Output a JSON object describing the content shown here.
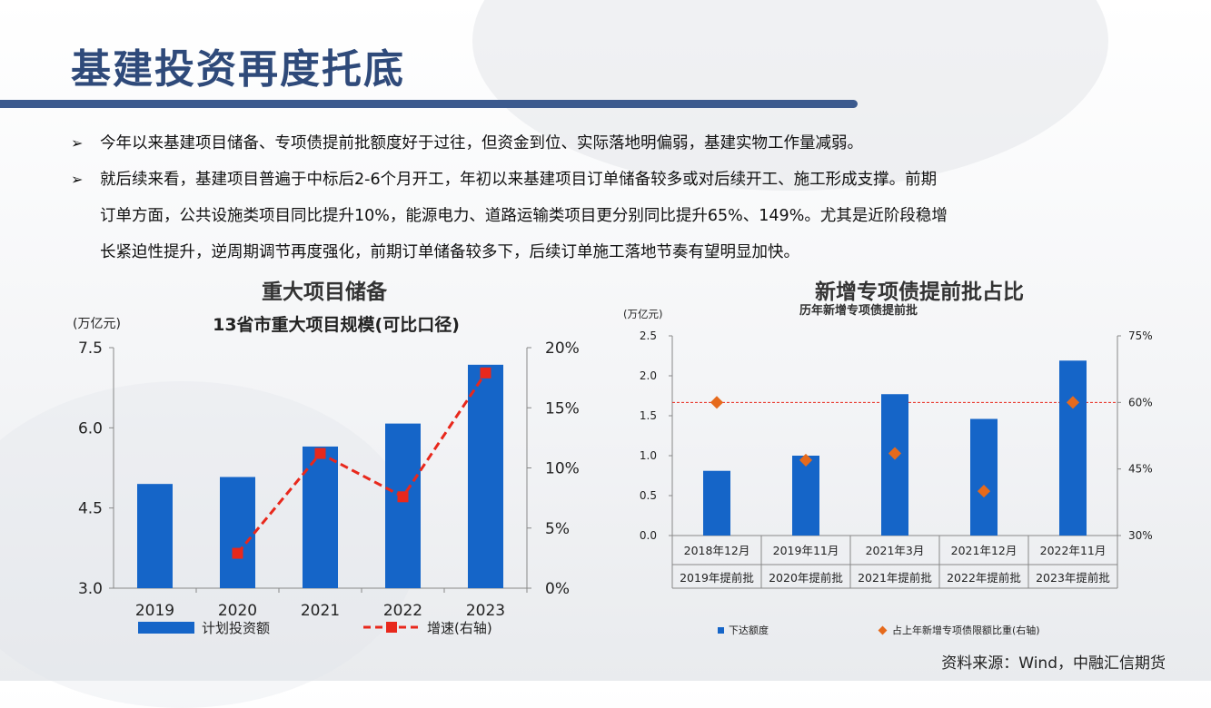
{
  "slide": {
    "title": "基建投资再度托底",
    "bullets": [
      {
        "lines": [
          "今年以来基建项目储备、专项债提前批额度好于过往，但资金到位、实际落地明偏弱，基建实物工作量减弱。"
        ]
      },
      {
        "lines": [
          "就后续来看，基建项目普遍于中标后2-6个月开工，年初以来基建项目订单储备较多或对后续开工、施工形成支撑。前期",
          "订单方面，公共设施类项目同比提升10%，能源电力、道路运输类项目更分别同比提升65%、149%。尤其是近阶段稳增",
          "长紧迫性提升，逆周期调节再度强化，前期订单储备较多下，后续订单施工落地节奏有望明显加快。"
        ]
      }
    ],
    "bullet_mark": "➢",
    "source": "资料来源：Wind，中融汇信期货"
  },
  "chart_data": [
    {
      "type": "bar",
      "panel_title": "重大项目储备",
      "title": "13省市重大项目规模(可比口径)",
      "unit_label": "(万亿元)",
      "categories": [
        "2019",
        "2020",
        "2021",
        "2022",
        "2023"
      ],
      "series": [
        {
          "name": "计划投资额",
          "type": "bar",
          "axis": "left",
          "values": [
            4.95,
            5.08,
            5.65,
            6.08,
            7.18
          ],
          "color": "#1565c8"
        },
        {
          "name": "增速(右轴)",
          "type": "line",
          "axis": "right",
          "values": [
            null,
            2.9,
            11.2,
            7.6,
            17.9
          ],
          "color": "#e8281c",
          "dashed": true
        }
      ],
      "ylim": [
        3.0,
        7.5
      ],
      "yticks": [
        "3.0",
        "4.5",
        "6.0",
        "7.5"
      ],
      "y2lim": [
        0,
        20
      ],
      "y2ticks": [
        "0%",
        "5%",
        "10%",
        "15%",
        "20%"
      ],
      "legend": "bottom"
    },
    {
      "type": "bar",
      "panel_title": "新增专项债提前批占比",
      "title": "历年新增专项债提前批",
      "unit_label": "(万亿元)",
      "categories": [
        "2018年12月",
        "2019年11月",
        "2021年3月",
        "2021年12月",
        "2022年11月"
      ],
      "category_sublabels": [
        "2019年提前批",
        "2020年提前批",
        "2021年提前批",
        "2022年提前批",
        "2023年提前批"
      ],
      "series": [
        {
          "name": "下达额度",
          "type": "bar",
          "axis": "left",
          "values": [
            0.81,
            1.0,
            1.77,
            1.46,
            2.19
          ],
          "color": "#1565c8"
        },
        {
          "name": "占上年新增专项债限额比重(右轴)",
          "type": "scatter",
          "axis": "right",
          "values": [
            60.0,
            47.0,
            48.5,
            40.0,
            60.0
          ],
          "color": "#e66a1c"
        }
      ],
      "reference_line": {
        "axis": "right",
        "value": 60.0,
        "color": "#e8281c"
      },
      "ylim": [
        0.0,
        2.5
      ],
      "yticks": [
        "0.0",
        "0.5",
        "1.0",
        "1.5",
        "2.0",
        "2.5"
      ],
      "y2lim": [
        30,
        75
      ],
      "y2ticks": [
        "30%",
        "45%",
        "60%",
        "75%"
      ],
      "legend": "bottom"
    }
  ]
}
